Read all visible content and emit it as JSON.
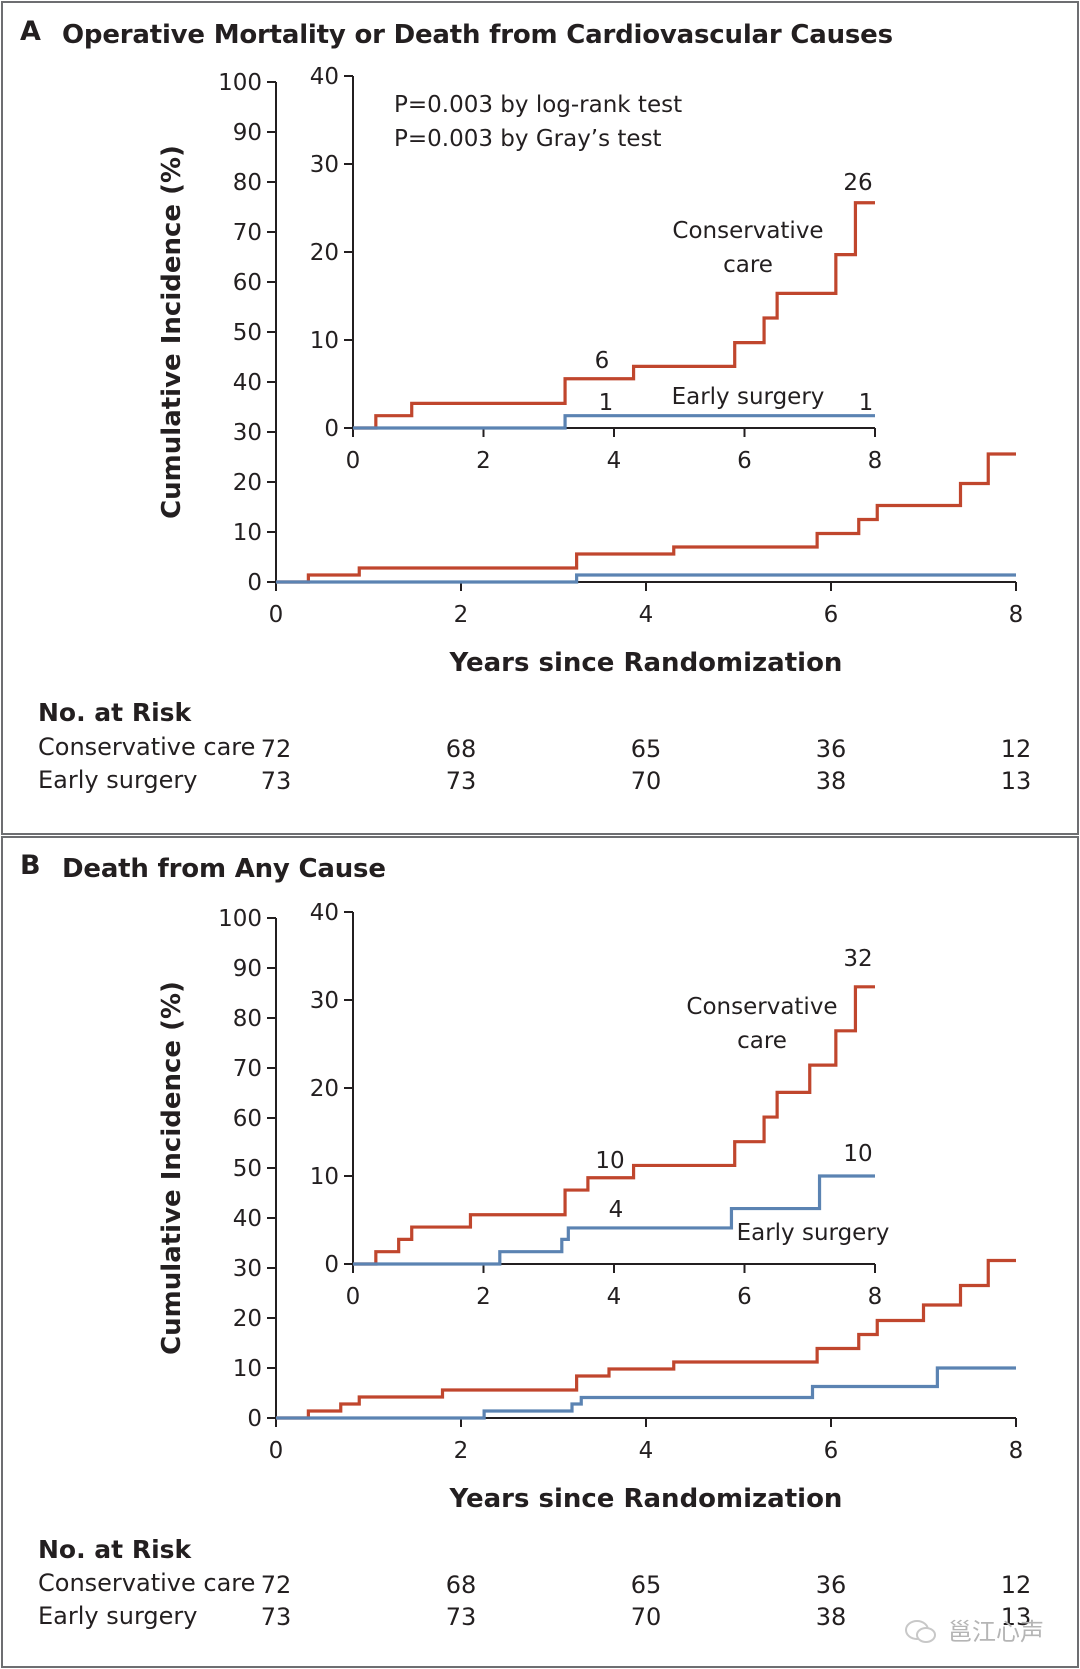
{
  "colors": {
    "conservative": "#c0462d",
    "early": "#5b83b2",
    "axis": "#231f20",
    "frame": "#6d6e71"
  },
  "panels": [
    {
      "letter": "A",
      "title": "Operative Mortality or Death from Cardiovascular Causes",
      "xlabel": "Years since Randomization",
      "ylabel": "Cumulative Incidence (%)",
      "risk": {
        "title": "No. at Risk",
        "rows": [
          {
            "label": "Conservative care",
            "values": [
              "72",
              "68",
              "65",
              "36",
              "12"
            ]
          },
          {
            "label": "Early surgery",
            "values": [
              "73",
              "73",
              "70",
              "38",
              "13"
            ]
          }
        ]
      }
    },
    {
      "letter": "B",
      "title": "Death from Any Cause",
      "xlabel": "Years since Randomization",
      "ylabel": "Cumulative Incidence (%)",
      "risk": {
        "title": "No. at Risk",
        "rows": [
          {
            "label": "Conservative care",
            "values": [
              "72",
              "68",
              "65",
              "36",
              "12"
            ]
          },
          {
            "label": "Early surgery",
            "values": [
              "73",
              "73",
              "70",
              "38",
              "13"
            ]
          }
        ]
      }
    }
  ],
  "watermark": "邕江心声",
  "chart_data": [
    {
      "type": "line",
      "step": true,
      "title": "Operative Mortality or Death from Cardiovascular Causes",
      "xlabel": "Years since Randomization",
      "ylabel": "Cumulative Incidence (%)",
      "xlim": [
        0,
        8
      ],
      "ylim": [
        0,
        100
      ],
      "x_ticks": [
        "0",
        "2",
        "4",
        "6",
        "8"
      ],
      "y_ticks": [
        "0",
        "10",
        "20",
        "30",
        "40",
        "50",
        "60",
        "70",
        "80",
        "90",
        "100"
      ],
      "series": [
        {
          "name": "Conservative care",
          "color": "#c0462d",
          "x": [
            0,
            0.35,
            0.9,
            3.25,
            4.3,
            5.85,
            6.3,
            6.5,
            7.4,
            7.7,
            8.0
          ],
          "y": [
            0,
            1.4,
            2.8,
            5.6,
            7.0,
            9.7,
            12.5,
            15.3,
            19.7,
            25.6,
            25.6
          ]
        },
        {
          "name": "Early surgery",
          "color": "#5b83b2",
          "x": [
            0,
            3.25,
            8.0
          ],
          "y": [
            0,
            1.4,
            1.4
          ]
        }
      ],
      "inset": {
        "xlim": [
          0,
          8
        ],
        "ylim": [
          0,
          40
        ],
        "x_ticks": [
          "0",
          "2",
          "4",
          "6",
          "8"
        ],
        "y_ticks": [
          "0",
          "10",
          "20",
          "30",
          "40"
        ],
        "annotations": [
          "P=0.003 by log-rank test",
          "P=0.003 by Gray’s test"
        ],
        "labels": [
          {
            "text": "Conservative",
            "series": "Conservative care"
          },
          {
            "text": "care",
            "series": "Conservative care"
          },
          {
            "text": "Early surgery",
            "series": "Early surgery"
          }
        ],
        "end_counts": [
          {
            "text": "6",
            "x": 3.8,
            "y": 5.6
          },
          {
            "text": "26",
            "x": 7.85,
            "y": 25.6
          },
          {
            "text": "1",
            "x": 3.9,
            "y": 1.4
          },
          {
            "text": "1",
            "x": 7.85,
            "y": 1.4
          }
        ]
      }
    },
    {
      "type": "line",
      "step": true,
      "title": "Death from Any Cause",
      "xlabel": "Years since Randomization",
      "ylabel": "Cumulative Incidence (%)",
      "xlim": [
        0,
        8
      ],
      "ylim": [
        0,
        100
      ],
      "x_ticks": [
        "0",
        "2",
        "4",
        "6",
        "8"
      ],
      "y_ticks": [
        "0",
        "10",
        "20",
        "30",
        "40",
        "50",
        "60",
        "70",
        "80",
        "90",
        "100"
      ],
      "series": [
        {
          "name": "Conservative care",
          "color": "#c0462d",
          "x": [
            0,
            0.35,
            0.7,
            0.9,
            1.8,
            3.25,
            3.6,
            4.3,
            5.85,
            6.3,
            6.5,
            7.0,
            7.4,
            7.7,
            8.0
          ],
          "y": [
            0,
            1.4,
            2.8,
            4.2,
            5.6,
            8.4,
            9.8,
            11.2,
            13.9,
            16.7,
            19.5,
            22.6,
            26.5,
            31.5,
            31.5
          ]
        },
        {
          "name": "Early surgery",
          "color": "#5b83b2",
          "x": [
            0,
            2.25,
            3.2,
            3.3,
            5.8,
            7.15,
            8.0
          ],
          "y": [
            0,
            1.4,
            2.8,
            4.1,
            6.3,
            10.0,
            10.0
          ]
        }
      ],
      "inset": {
        "xlim": [
          0,
          8
        ],
        "ylim": [
          0,
          40
        ],
        "x_ticks": [
          "0",
          "2",
          "4",
          "6",
          "8"
        ],
        "y_ticks": [
          "0",
          "10",
          "20",
          "30",
          "40"
        ],
        "annotations": [],
        "labels": [
          {
            "text": "Conservative",
            "series": "Conservative care"
          },
          {
            "text": "care",
            "series": "Conservative care"
          },
          {
            "text": "Early surgery",
            "series": "Early surgery"
          }
        ],
        "end_counts": [
          {
            "text": "10",
            "x": 3.9,
            "y": 9.8
          },
          {
            "text": "32",
            "x": 7.85,
            "y": 31.5
          },
          {
            "text": "4",
            "x": 4.05,
            "y": 4.1
          },
          {
            "text": "10",
            "x": 7.85,
            "y": 10.0
          }
        ]
      }
    }
  ]
}
